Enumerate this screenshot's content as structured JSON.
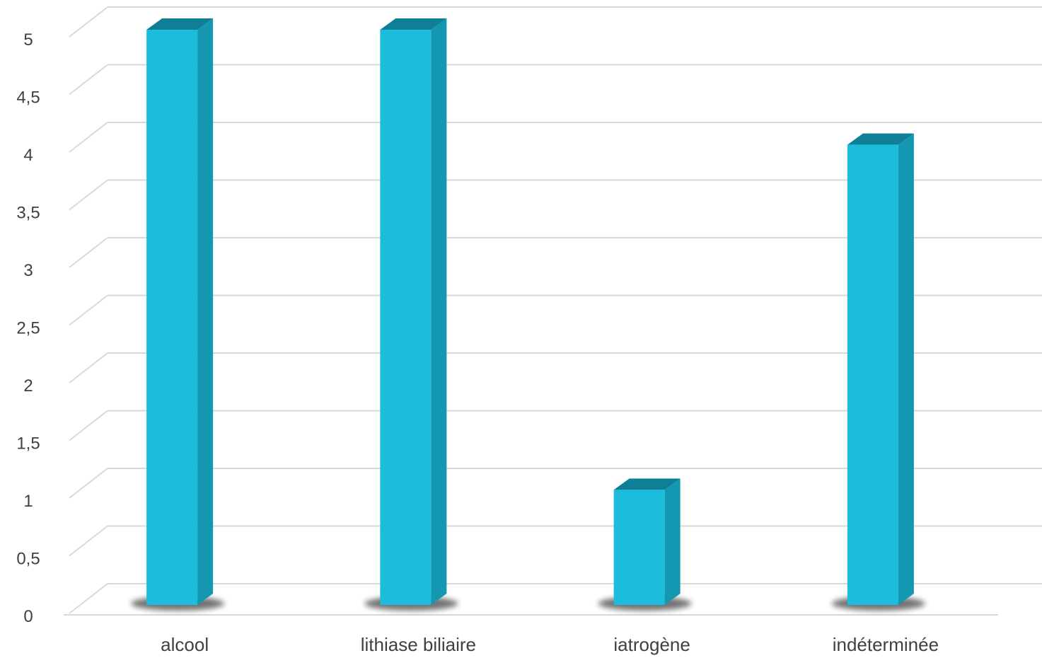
{
  "chart_data": {
    "type": "bar",
    "categories": [
      "alcool",
      "lithiase biliaire",
      "iatrogène",
      "indéterminée"
    ],
    "values": [
      5,
      5,
      1,
      4
    ],
    "ylim": [
      0,
      5
    ],
    "yticks": [
      "0",
      "0,5",
      "1",
      "1,5",
      "2",
      "2,5",
      "3",
      "3,5",
      "4",
      "4,5",
      "5"
    ],
    "grid": true,
    "legend": "none",
    "colors": {
      "bar_front": "#1bbcdc",
      "bar_side": "#1497b1",
      "bar_top": "#0f7f96",
      "grid": "#d9d9d9"
    }
  }
}
